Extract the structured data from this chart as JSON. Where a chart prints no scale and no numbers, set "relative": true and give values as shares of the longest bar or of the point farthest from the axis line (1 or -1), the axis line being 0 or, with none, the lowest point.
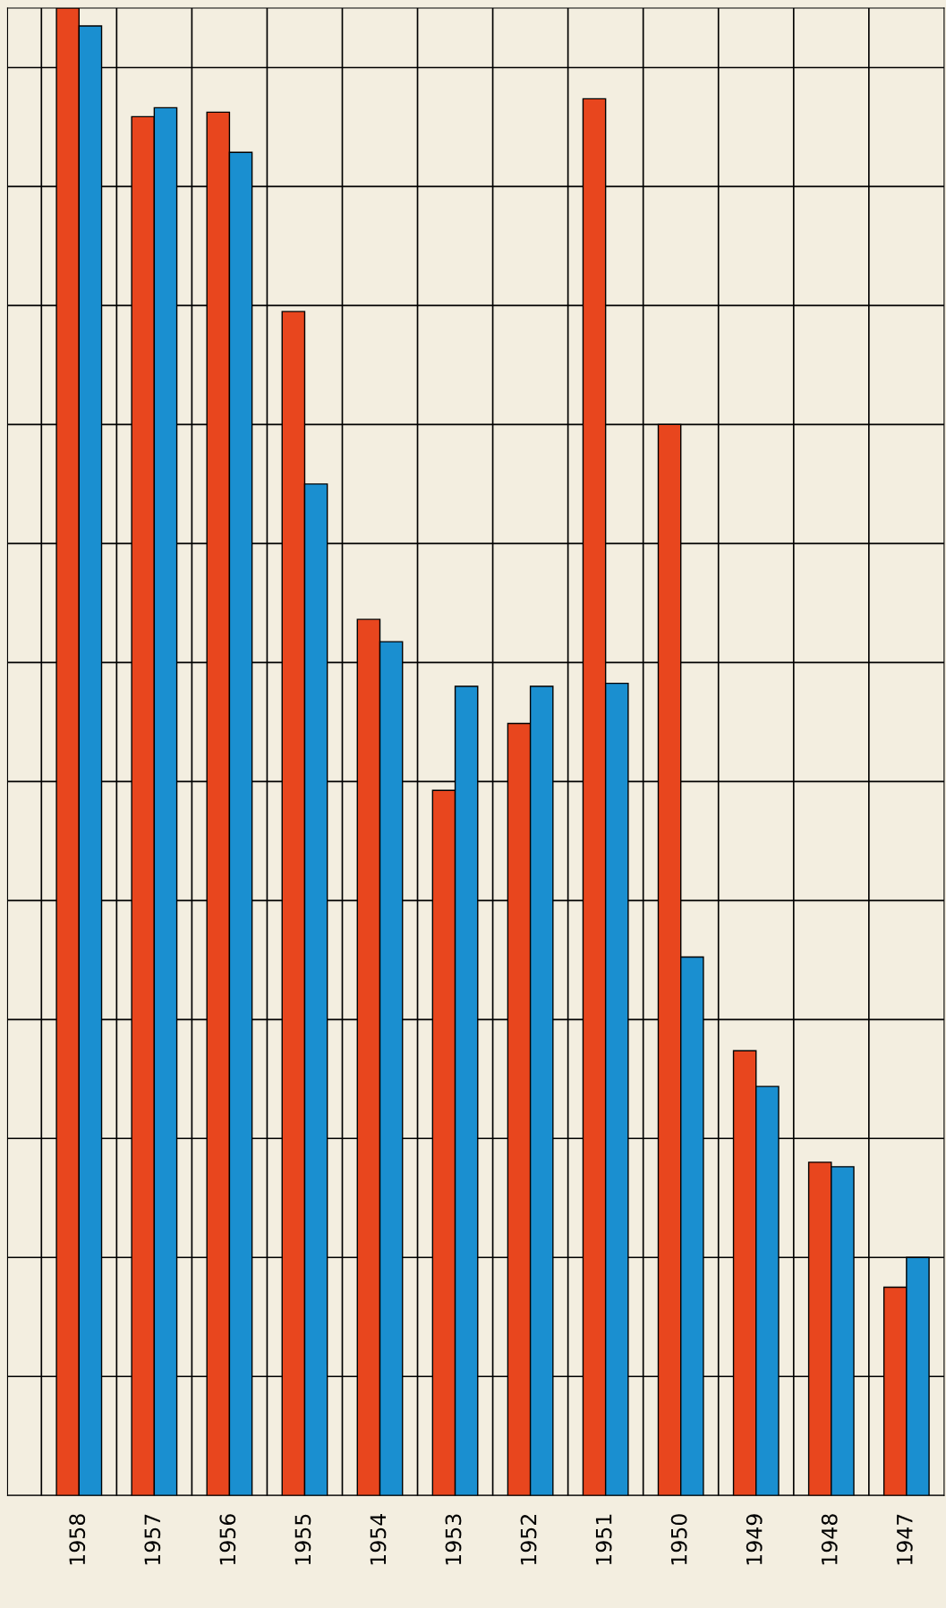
{
  "chart_data": {
    "type": "bar",
    "relative": true,
    "grid": true,
    "categories": [
      "1958",
      "1957",
      "1956",
      "1955",
      "1954",
      "1953",
      "1952",
      "1951",
      "1950",
      "1949",
      "1948",
      "1947"
    ],
    "series": [
      {
        "color": "#e8461e",
        "values": [
          1.0,
          0.927,
          0.93,
          0.796,
          0.589,
          0.474,
          0.519,
          0.939,
          0.72,
          0.299,
          0.224,
          0.14
        ]
      },
      {
        "color": "#1a8fd0",
        "values": [
          0.988,
          0.933,
          0.903,
          0.68,
          0.574,
          0.544,
          0.544,
          0.546,
          0.362,
          0.275,
          0.221,
          0.16
        ]
      }
    ]
  }
}
